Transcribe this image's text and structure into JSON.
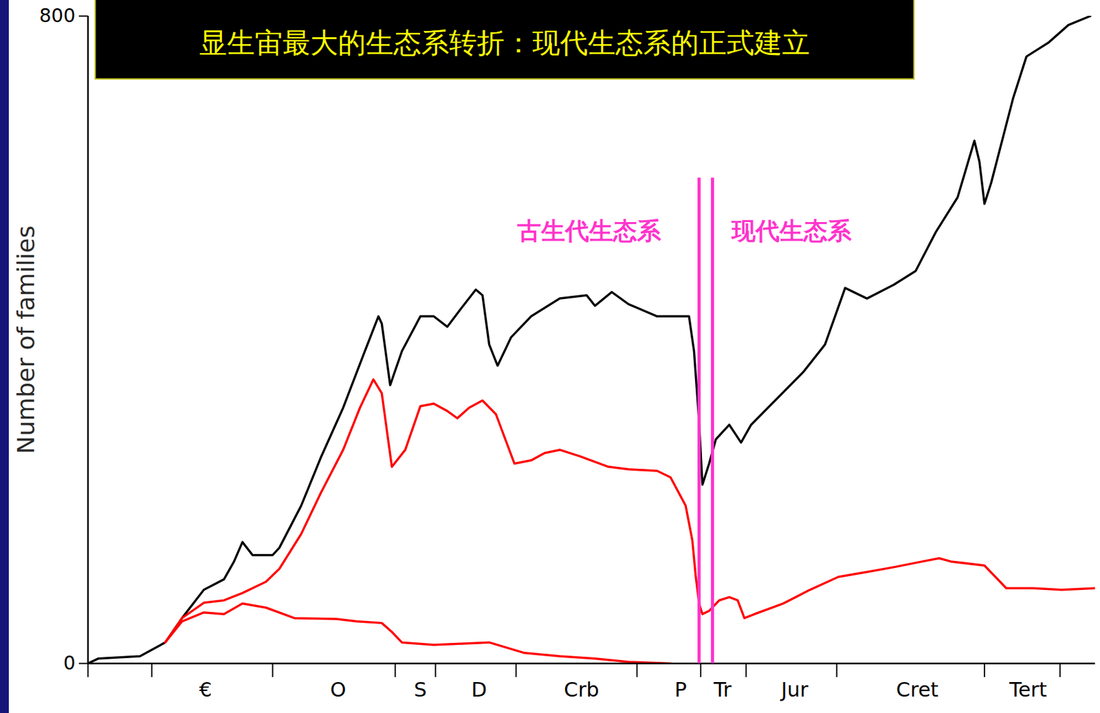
{
  "chart_data": {
    "type": "line",
    "title": "显生宙最大的生态系转折：现代生态系的正式建立",
    "y_label": "Number of families",
    "xlim": [
      600,
      0
    ],
    "xticks": [
      {
        "value": 530,
        "label": "€"
      },
      {
        "value": 451,
        "label": "O"
      },
      {
        "value": 402,
        "label": "S"
      },
      {
        "value": 367,
        "label": "D"
      },
      {
        "value": 306,
        "label": "Crb"
      },
      {
        "value": 247,
        "label": "P"
      },
      {
        "value": 222,
        "label": "Tr"
      },
      {
        "value": 179,
        "label": "Jur"
      },
      {
        "value": 106,
        "label": "Cret"
      },
      {
        "value": 40,
        "label": "Tert"
      }
    ],
    "period_boundaries": [
      600,
      562,
      490,
      417,
      393,
      345,
      273,
      235,
      208,
      154,
      66,
      21
    ],
    "ylim": [
      0,
      800
    ],
    "yticks": [
      0,
      800
    ],
    "grid": false,
    "series": [
      {
        "color": "#000000",
        "x": [
          600,
          594,
          569,
          554,
          544,
          531,
          519,
          513,
          508,
          502,
          490,
          486,
          473,
          461,
          448,
          436,
          427,
          425,
          420,
          413,
          402,
          394,
          386,
          378,
          369,
          365,
          361,
          356,
          348,
          336,
          319,
          303,
          298,
          288,
          278,
          261,
          242,
          239,
          236,
          234,
          230,
          226,
          218,
          211,
          205,
          195,
          174,
          161,
          149,
          136,
          120,
          107,
          95,
          82,
          72,
          69,
          66,
          62,
          49,
          41,
          28,
          16,
          3
        ],
        "values": [
          0,
          6,
          9,
          26,
          56,
          91,
          104,
          126,
          150,
          134,
          134,
          143,
          195,
          256,
          316,
          381,
          429,
          420,
          344,
          386,
          429,
          429,
          416,
          438,
          462,
          455,
          394,
          368,
          403,
          429,
          451,
          455,
          442,
          459,
          444,
          429,
          429,
          386,
          299,
          221,
          247,
          277,
          295,
          273,
          295,
          316,
          360,
          394,
          464,
          451,
          468,
          485,
          533,
          576,
          646,
          620,
          568,
          594,
          698,
          750,
          767,
          789,
          800
        ]
      },
      {
        "color": "#ff0000",
        "x": [
          554,
          544,
          531,
          519,
          508,
          494,
          486,
          473,
          461,
          448,
          438,
          430,
          425,
          419,
          411,
          402,
          394,
          386,
          380,
          373,
          365,
          357,
          346,
          336,
          328,
          319,
          307,
          290,
          278,
          261,
          253,
          244,
          240,
          238,
          236,
          234,
          230,
          224,
          218,
          213,
          209,
          203,
          186,
          170,
          153,
          136,
          120,
          103,
          93,
          86,
          66,
          53,
          37,
          20,
          0
        ],
        "values": [
          26,
          56,
          75,
          78,
          87,
          101,
          117,
          160,
          212,
          264,
          316,
          351,
          334,
          243,
          264,
          318,
          321,
          312,
          303,
          316,
          325,
          308,
          247,
          251,
          260,
          264,
          256,
          243,
          240,
          238,
          230,
          195,
          152,
          108,
          74,
          61,
          65,
          78,
          82,
          78,
          56,
          61,
          74,
          91,
          107,
          113,
          119,
          126,
          130,
          126,
          121,
          93,
          93,
          91,
          93
        ]
      },
      {
        "color": "#ff0000",
        "x": [
          554,
          544,
          531,
          519,
          508,
          494,
          477,
          452,
          440,
          425,
          419,
          413,
          394,
          361,
          340,
          319,
          298,
          278,
          253
        ],
        "values": [
          26,
          52,
          63,
          61,
          74,
          69,
          56,
          55,
          52,
          50,
          39,
          26,
          23,
          26,
          13,
          9,
          6,
          2,
          0
        ]
      }
    ],
    "dividers": {
      "x": [
        236,
        228
      ],
      "ylim": [
        0,
        600
      ]
    },
    "annotations": [
      {
        "text": "古生代生态系"
      },
      {
        "text": "现代生态系"
      }
    ]
  }
}
